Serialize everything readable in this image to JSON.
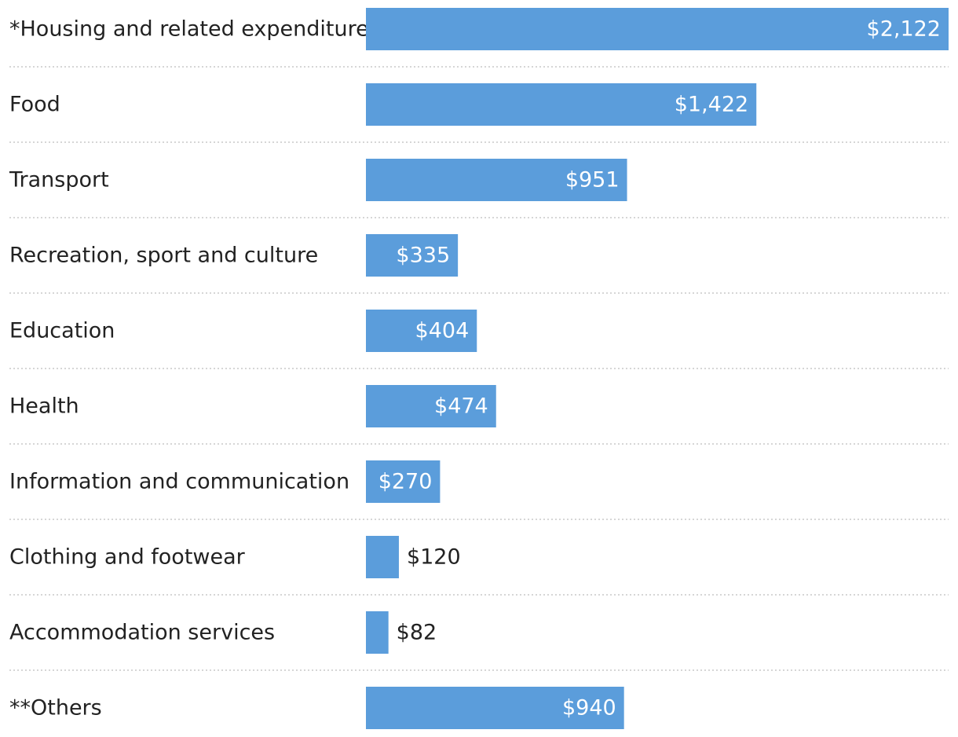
{
  "chart_data": {
    "type": "bar",
    "orientation": "horizontal",
    "title": "",
    "xlabel": "",
    "ylabel": "",
    "bar_color": "#5b9ddb",
    "inside_label_color": "#ffffff",
    "outside_label_color": "#222222",
    "categories": [
      "*Housing and related expenditure",
      "Food",
      "Transport",
      "Recreation, sport and culture",
      "Education",
      "Health",
      "Information and communication",
      "Clothing and footwear",
      "Accommodation services",
      "**Others"
    ],
    "values": [
      2122,
      1422,
      951,
      335,
      404,
      474,
      270,
      120,
      82,
      940
    ],
    "value_labels": [
      "$2,122",
      "$1,422",
      "$951",
      "$335",
      "$404",
      "$474",
      "$270",
      "$120",
      "$82",
      "$940"
    ],
    "xlim": [
      0,
      2122
    ]
  }
}
